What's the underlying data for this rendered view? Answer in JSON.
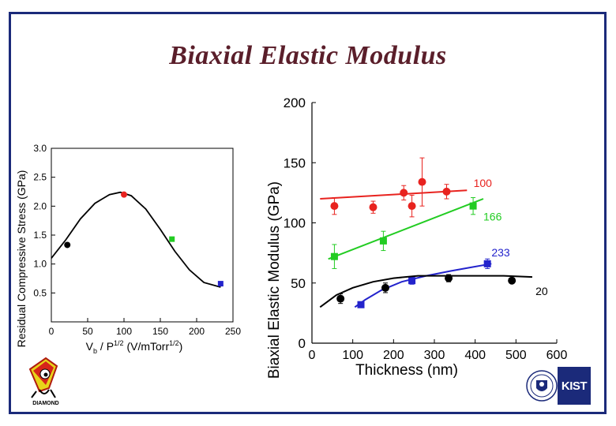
{
  "slide": {
    "title": "Biaxial Elastic Modulus",
    "colors": {
      "frame": "#1b2a7a",
      "title": "#5a1e2a"
    }
  },
  "logos": {
    "left": {
      "icon": "diamond-mascot-logo",
      "text": "DIAMOND"
    },
    "right_seal": {
      "icon": "university-seal-icon"
    },
    "right_brand": {
      "icon": "kist-logo",
      "text": "KIST"
    }
  },
  "chart_data": [
    {
      "type": "scatter",
      "title": "",
      "xlabel": "V / P",
      "xlabel_parts": {
        "main": "V",
        "sub": "b",
        "mid": " / P",
        "sup": "1/2",
        "tail": "  (V/mTorr",
        "sup2": "1/2",
        "end": ")"
      },
      "ylabel": "Residual Compressive Stress (GPa)",
      "xlim": [
        0,
        250
      ],
      "ylim": [
        0.0,
        3.0
      ],
      "xticks": [
        0,
        50,
        100,
        150,
        200,
        250
      ],
      "yticks": [
        0.5,
        1.0,
        1.5,
        2.0,
        2.5,
        3.0
      ],
      "ytick_labels": [
        "0.5",
        "1.0",
        "1.5",
        "2.0",
        "2.5",
        "3.0"
      ],
      "points": [
        {
          "x": 22,
          "y": 1.33,
          "color": "#000000",
          "shape": "circle"
        },
        {
          "x": 100,
          "y": 2.2,
          "color": "#e8231f",
          "shape": "circle",
          "yerr": 0.05
        },
        {
          "x": 166,
          "y": 1.43,
          "color": "#22cc22",
          "shape": "square"
        },
        {
          "x": 233,
          "y": 0.66,
          "color": "#2323cc",
          "shape": "square"
        }
      ],
      "fit_curve": {
        "x": [
          0,
          20,
          40,
          60,
          80,
          95,
          110,
          130,
          150,
          170,
          190,
          210,
          233
        ],
        "y": [
          1.1,
          1.42,
          1.78,
          2.05,
          2.2,
          2.24,
          2.18,
          1.95,
          1.6,
          1.22,
          0.9,
          0.68,
          0.6
        ]
      }
    },
    {
      "type": "scatter",
      "title": "",
      "xlabel": "Thickness (nm)",
      "ylabel": "Biaxial Elastic Modulus (GPa)",
      "xlim": [
        0,
        600
      ],
      "ylim": [
        0,
        200
      ],
      "xticks": [
        0,
        100,
        200,
        300,
        400,
        500,
        600
      ],
      "yticks": [
        0,
        50,
        100,
        150,
        200
      ],
      "series": [
        {
          "name": "100",
          "color": "#e8231f",
          "shape": "circle",
          "points": [
            {
              "x": 55,
              "y": 114,
              "yerr": 7
            },
            {
              "x": 150,
              "y": 113,
              "yerr": 5
            },
            {
              "x": 225,
              "y": 125,
              "yerr": 6
            },
            {
              "x": 245,
              "y": 114,
              "yerr": 9
            },
            {
              "x": 270,
              "y": 134,
              "yerr": 20
            },
            {
              "x": 330,
              "y": 126,
              "yerr": 6
            }
          ],
          "fit": {
            "x": [
              20,
              380
            ],
            "y": [
              120,
              127
            ]
          }
        },
        {
          "name": "166",
          "color": "#22cc22",
          "shape": "square",
          "points": [
            {
              "x": 55,
              "y": 72,
              "yerr": 10
            },
            {
              "x": 175,
              "y": 85,
              "yerr": 8
            },
            {
              "x": 395,
              "y": 114,
              "yerr": 7
            }
          ],
          "fit": {
            "x": [
              40,
              420
            ],
            "y": [
              70,
              120
            ]
          }
        },
        {
          "name": "233",
          "color": "#2323cc",
          "shape": "square",
          "points": [
            {
              "x": 120,
              "y": 32,
              "yerr": 2
            },
            {
              "x": 245,
              "y": 52,
              "yerr": 3
            },
            {
              "x": 430,
              "y": 66,
              "yerr": 4
            }
          ],
          "fit": {
            "x": [
              105,
              130,
              170,
              220,
              280,
              340,
              390,
              440
            ],
            "y": [
              30,
              36,
              44,
              51,
              56,
              60,
              63,
              66
            ]
          }
        },
        {
          "name": "20",
          "color": "#000000",
          "shape": "circle",
          "points": [
            {
              "x": 70,
              "y": 37,
              "yerr": 4
            },
            {
              "x": 180,
              "y": 46,
              "yerr": 4
            },
            {
              "x": 335,
              "y": 54,
              "yerr": 3
            },
            {
              "x": 490,
              "y": 52,
              "yerr": 2
            }
          ],
          "fit": {
            "x": [
              20,
              60,
              100,
              150,
              200,
              260,
              320,
              400,
              470,
              540
            ],
            "y": [
              30,
              40,
              46,
              51,
              54,
              56,
              56,
              56,
              56,
              55
            ]
          }
        }
      ]
    }
  ]
}
